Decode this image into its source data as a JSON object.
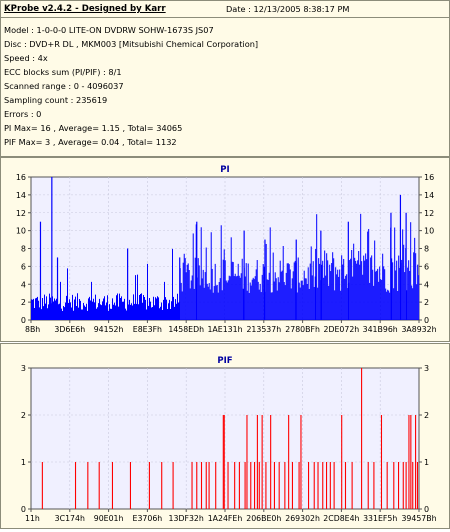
{
  "info": {
    "title": "KProbe v2.4.2 - Designed by Karr",
    "date": "Date : 12/13/2005 8:38:17 PM",
    "lines": [
      "Model : 1-0-0-0 LITE-ON DVDRW SOHW-1673S JS07",
      "Disc : DVD+R DL , MKM003 [Mitsubishi Chemical Corporation]",
      "Speed : 4x",
      "ECC blocks sum (PI/PIF) : 8/1",
      "Scanned range : 0 - 4096037",
      "Sampling count : 235619",
      "Errors : 0",
      "PI Max= 16 , Average= 1.15 , Total= 34065",
      "PIF Max= 3 , Average= 0.04 , Total= 1132"
    ]
  },
  "colors": {
    "pi": "#0000ff",
    "pif": "#ff0000",
    "plot_bg": "#f0f0ff",
    "panel_bg": "#fffbe7",
    "title": "#0000a0"
  },
  "chart_data": [
    {
      "type": "bar",
      "title": "PI",
      "xlabel": "",
      "ylabel": "",
      "ylim": [
        0,
        16
      ],
      "yticks": [
        0,
        2,
        4,
        6,
        8,
        10,
        12,
        14,
        16
      ],
      "grid": true,
      "xtick_labels": [
        "8Bh",
        "3D6E6h",
        "94152h",
        "E8E3Fh",
        "1458EDh",
        "1AE131h",
        "213537h",
        "2780BFh",
        "2DE072h",
        "341B96h",
        "3A8932h"
      ],
      "x_range": [
        0,
        4096037
      ],
      "segments": [
        {
          "x_from": 0,
          "x_to": 1570000,
          "typical": [
            1,
            3
          ],
          "spike_max": 8
        },
        {
          "x_from": 1570000,
          "x_to": 3000000,
          "typical": [
            3,
            7
          ],
          "spike_max": 11
        },
        {
          "x_from": 3000000,
          "x_to": 4096037,
          "typical": [
            3,
            8
          ],
          "spike_max": 12
        }
      ],
      "spikes": [
        {
          "x": 100000,
          "value": 11
        },
        {
          "x": 220000,
          "value": 16
        },
        {
          "x": 280000,
          "value": 7
        },
        {
          "x": 1020000,
          "value": 8
        },
        {
          "x": 1570000,
          "value": 7
        },
        {
          "x": 1750000,
          "value": 11
        },
        {
          "x": 2250000,
          "value": 10
        },
        {
          "x": 2470000,
          "value": 9
        },
        {
          "x": 2800000,
          "value": 9
        },
        {
          "x": 3060000,
          "value": 10
        },
        {
          "x": 3350000,
          "value": 11
        },
        {
          "x": 3800000,
          "value": 12
        },
        {
          "x": 3900000,
          "value": 14
        },
        {
          "x": 3960000,
          "value": 12
        }
      ]
    },
    {
      "type": "bar",
      "title": "PIF",
      "xlabel": "",
      "ylabel": "",
      "ylim": [
        0,
        3
      ],
      "yticks": [
        0,
        1,
        2,
        3
      ],
      "grid": true,
      "xtick_labels": [
        "11h",
        "3C174h",
        "90E01h",
        "E3706h",
        "13DF32h",
        "1A24FEh",
        "206BE0h",
        "269302h",
        "2CD8E4h",
        "331EF5h",
        "39457Bh"
      ],
      "x_range": [
        0,
        4096037
      ],
      "bars": [
        {
          "x": 120000,
          "value": 1
        },
        {
          "x": 470000,
          "value": 1
        },
        {
          "x": 600000,
          "value": 1
        },
        {
          "x": 720000,
          "value": 1
        },
        {
          "x": 860000,
          "value": 1
        },
        {
          "x": 1050000,
          "value": 1
        },
        {
          "x": 1250000,
          "value": 1
        },
        {
          "x": 1380000,
          "value": 1
        },
        {
          "x": 1500000,
          "value": 1
        },
        {
          "x": 1700000,
          "value": 1
        },
        {
          "x": 1750000,
          "value": 1
        },
        {
          "x": 1800000,
          "value": 1
        },
        {
          "x": 1850000,
          "value": 1
        },
        {
          "x": 1880000,
          "value": 1
        },
        {
          "x": 1950000,
          "value": 1
        },
        {
          "x": 2030000,
          "value": 2
        },
        {
          "x": 2040000,
          "value": 2
        },
        {
          "x": 2080000,
          "value": 1
        },
        {
          "x": 2150000,
          "value": 1
        },
        {
          "x": 2200000,
          "value": 1
        },
        {
          "x": 2260000,
          "value": 1
        },
        {
          "x": 2280000,
          "value": 2
        },
        {
          "x": 2320000,
          "value": 1
        },
        {
          "x": 2360000,
          "value": 1
        },
        {
          "x": 2390000,
          "value": 2
        },
        {
          "x": 2410000,
          "value": 1
        },
        {
          "x": 2440000,
          "value": 2
        },
        {
          "x": 2480000,
          "value": 1
        },
        {
          "x": 2530000,
          "value": 2
        },
        {
          "x": 2570000,
          "value": 1
        },
        {
          "x": 2620000,
          "value": 1
        },
        {
          "x": 2680000,
          "value": 1
        },
        {
          "x": 2720000,
          "value": 2
        },
        {
          "x": 2760000,
          "value": 1
        },
        {
          "x": 2830000,
          "value": 1
        },
        {
          "x": 2850000,
          "value": 2
        },
        {
          "x": 2930000,
          "value": 1
        },
        {
          "x": 2990000,
          "value": 1
        },
        {
          "x": 3030000,
          "value": 1
        },
        {
          "x": 3080000,
          "value": 1
        },
        {
          "x": 3120000,
          "value": 1
        },
        {
          "x": 3160000,
          "value": 1
        },
        {
          "x": 3200000,
          "value": 1
        },
        {
          "x": 3280000,
          "value": 2
        },
        {
          "x": 3320000,
          "value": 1
        },
        {
          "x": 3390000,
          "value": 1
        },
        {
          "x": 3490000,
          "value": 3
        },
        {
          "x": 3560000,
          "value": 1
        },
        {
          "x": 3620000,
          "value": 1
        },
        {
          "x": 3700000,
          "value": 2
        },
        {
          "x": 3760000,
          "value": 1
        },
        {
          "x": 3830000,
          "value": 1
        },
        {
          "x": 3880000,
          "value": 1
        },
        {
          "x": 3930000,
          "value": 1
        },
        {
          "x": 3960000,
          "value": 1
        },
        {
          "x": 3990000,
          "value": 2
        },
        {
          "x": 4010000,
          "value": 2
        },
        {
          "x": 4030000,
          "value": 1
        },
        {
          "x": 4060000,
          "value": 2
        },
        {
          "x": 4080000,
          "value": 1
        }
      ]
    }
  ]
}
